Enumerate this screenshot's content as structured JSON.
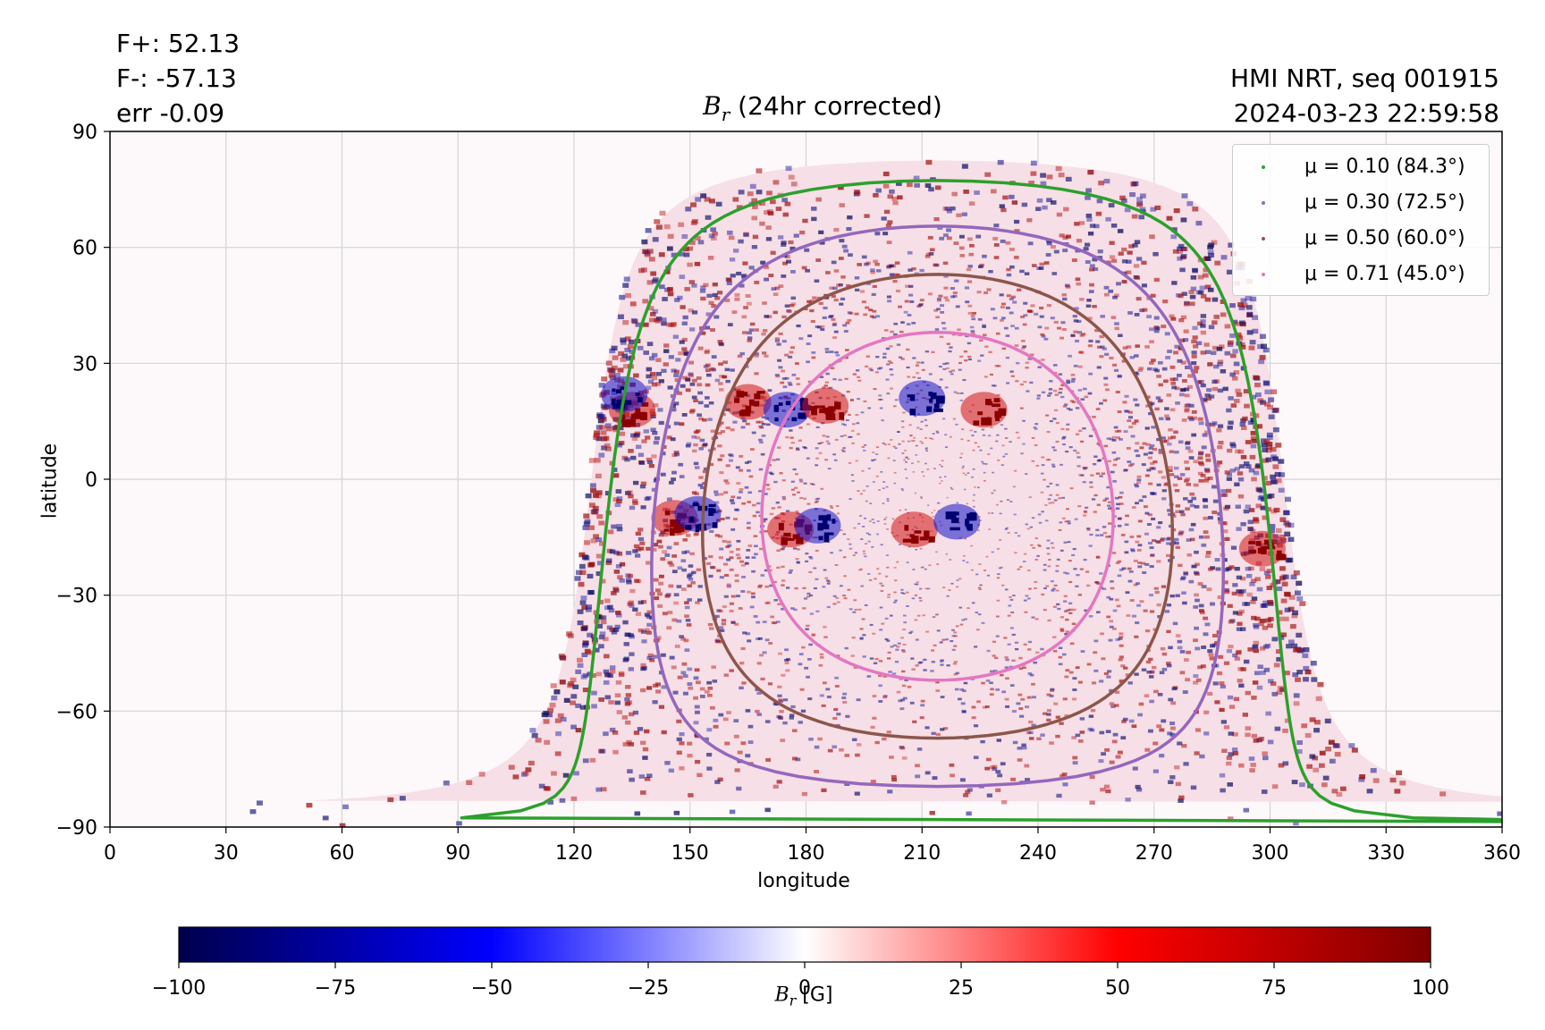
{
  "annotations": {
    "flux_pos": "F+: 52.13",
    "flux_neg": "F-: -57.13",
    "err": "err -0.09",
    "source": "HMI NRT, seq 001915",
    "timestamp": "2024-03-23 22:59:58"
  },
  "chart_data": [
    {
      "type": "heatmap",
      "title": "B_r (24hr corrected)",
      "title_symbol": "B",
      "title_subscript": "r",
      "title_rest": " (24hr corrected)",
      "xlabel": "longitude",
      "ylabel": "latitude",
      "xlim": [
        0,
        360
      ],
      "ylim": [
        -90,
        90
      ],
      "xticks": [
        0,
        30,
        60,
        90,
        120,
        150,
        180,
        210,
        240,
        270,
        300,
        330,
        360
      ],
      "yticks": [
        -90,
        -60,
        -30,
        0,
        30,
        60,
        90
      ],
      "ytick_labels": [
        "−90",
        "−60",
        "−30",
        "0",
        "30",
        "60",
        "90"
      ],
      "grid": true,
      "colormap": "seismic",
      "value_range": [
        -100,
        100
      ],
      "disk_center_lon": 214,
      "disk_center_lat": -7,
      "disk_lon_halfwidth": 90,
      "legend_position": "upper right",
      "series": [
        {
          "name": "μ = 0.10 (84.3°)",
          "mu": 0.1,
          "angle_deg": 84.3,
          "color": "#2ca02c"
        },
        {
          "name": "μ = 0.30 (72.5°)",
          "mu": 0.3,
          "angle_deg": 72.5,
          "color": "#9467bd"
        },
        {
          "name": "μ = 0.50 (60.0°)",
          "mu": 0.5,
          "angle_deg": 60.0,
          "color": "#8c564b"
        },
        {
          "name": "μ = 0.71 (45.0°)",
          "mu": 0.71,
          "angle_deg": 45.0,
          "color": "#e377c2"
        }
      ],
      "active_regions": [
        {
          "lon": 135,
          "lat": 18,
          "polarity": "positive"
        },
        {
          "lon": 133,
          "lat": 22,
          "polarity": "negative"
        },
        {
          "lon": 165,
          "lat": 20,
          "polarity": "positive"
        },
        {
          "lon": 175,
          "lat": 18,
          "polarity": "negative"
        },
        {
          "lon": 185,
          "lat": 19,
          "polarity": "positive"
        },
        {
          "lon": 210,
          "lat": 21,
          "polarity": "negative"
        },
        {
          "lon": 226,
          "lat": 18,
          "polarity": "positive"
        },
        {
          "lon": 146,
          "lat": -10,
          "polarity": "positive"
        },
        {
          "lon": 152,
          "lat": -9,
          "polarity": "negative"
        },
        {
          "lon": 176,
          "lat": -13,
          "polarity": "positive"
        },
        {
          "lon": 183,
          "lat": -12,
          "polarity": "negative"
        },
        {
          "lon": 208,
          "lat": -13,
          "polarity": "positive"
        },
        {
          "lon": 219,
          "lat": -11,
          "polarity": "negative"
        },
        {
          "lon": 298,
          "lat": -18,
          "polarity": "positive"
        }
      ]
    },
    {
      "type": "colorbar",
      "label": "B_r [G]",
      "label_symbol": "B",
      "label_subscript": "r",
      "label_rest": " [G]",
      "range": [
        -100,
        100
      ],
      "ticks": [
        -100,
        -75,
        -50,
        -25,
        0,
        25,
        50,
        75,
        100
      ],
      "tick_labels": [
        "−100",
        "−75",
        "−50",
        "−25",
        "0",
        "25",
        "50",
        "75",
        "100"
      ],
      "colors": {
        "neg_max": "#00004c",
        "neg": "#0000ff",
        "zero": "#ffffff",
        "pos": "#ff0000",
        "pos_max": "#7f0000"
      }
    }
  ]
}
